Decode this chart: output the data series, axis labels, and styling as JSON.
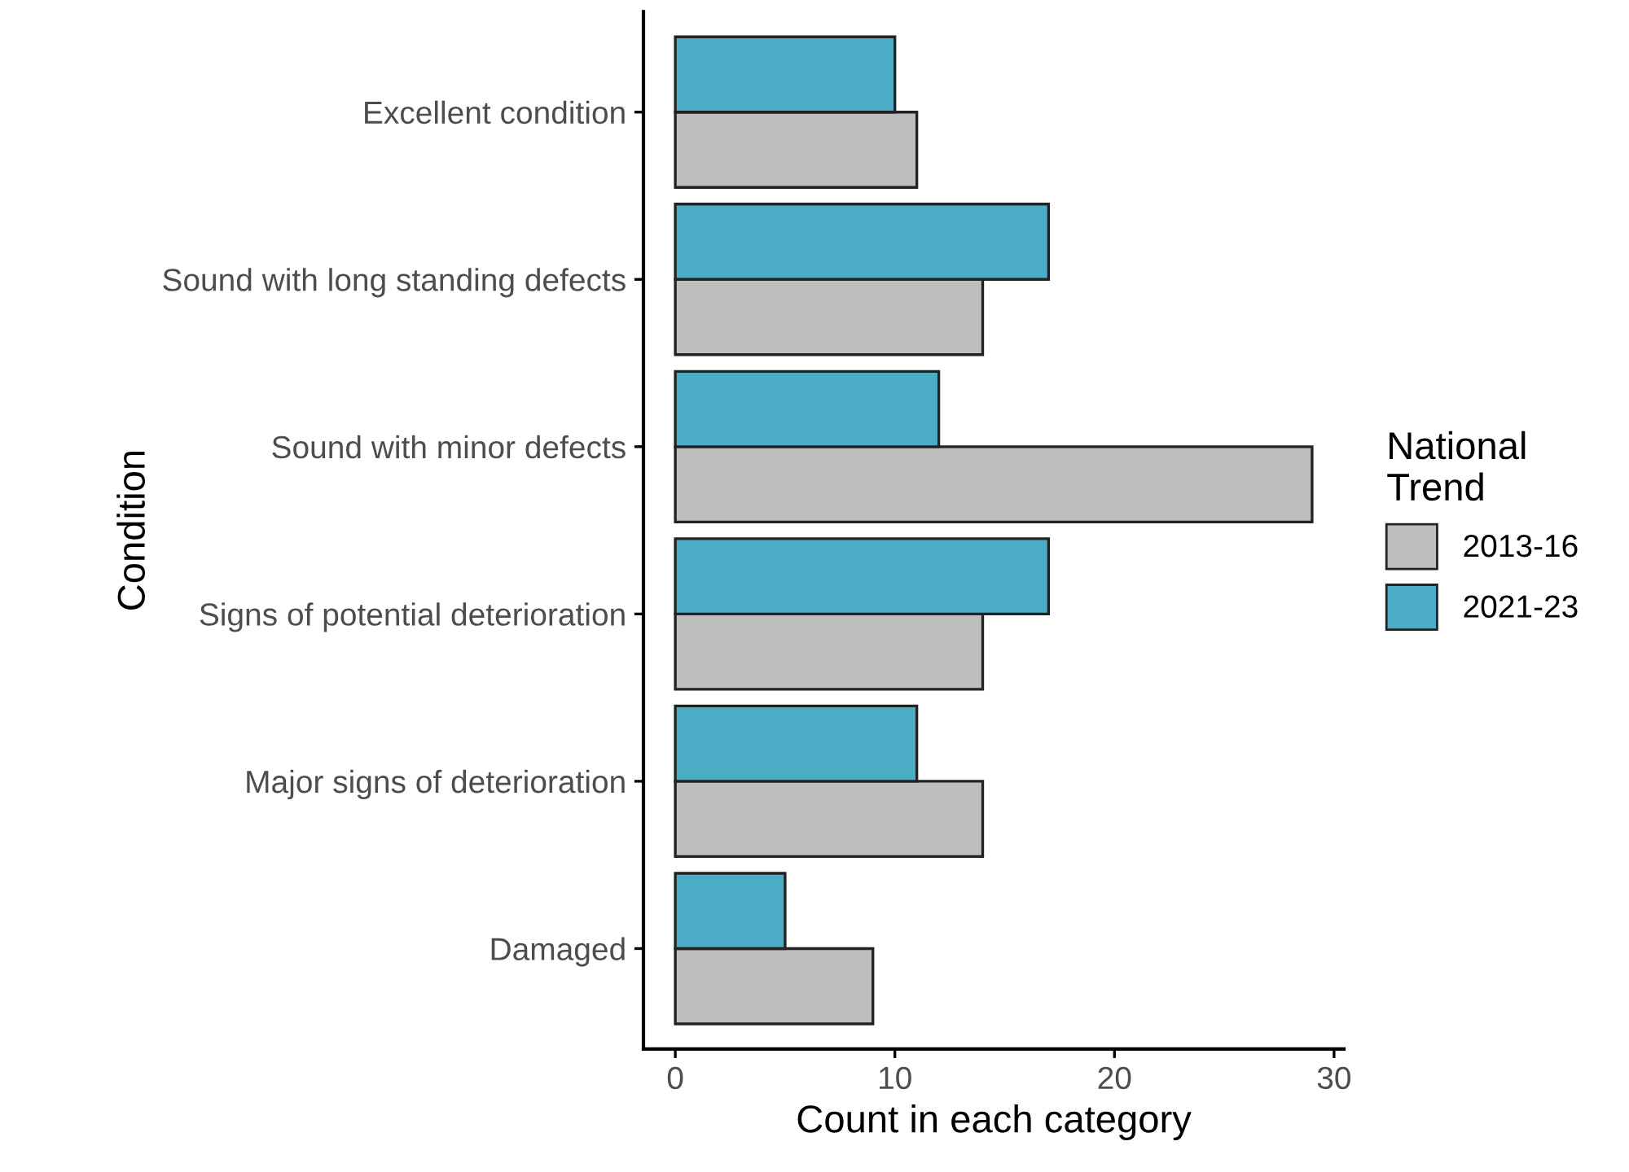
{
  "chart_data": {
    "type": "bar",
    "orientation": "horizontal",
    "xlabel": "Count in each category",
    "ylabel": "Condition",
    "legend_title": "National\nTrend",
    "legend": "right",
    "grid": false,
    "categories": [
      "Excellent condition",
      "Sound with long standing defects",
      "Sound with minor defects",
      "Signs of potential deterioration",
      "Major signs of deterioration",
      "Damaged"
    ],
    "series": [
      {
        "name": "2013-16",
        "color": "#bebebe",
        "values": [
          11,
          14,
          29,
          14,
          14,
          9
        ]
      },
      {
        "name": "2021-23",
        "color": "#4bacc6",
        "values": [
          10,
          17,
          12,
          17,
          11,
          5
        ]
      }
    ],
    "xlim": [
      -1.45,
      30.45
    ],
    "xticks": [
      0,
      10,
      20,
      30
    ]
  }
}
